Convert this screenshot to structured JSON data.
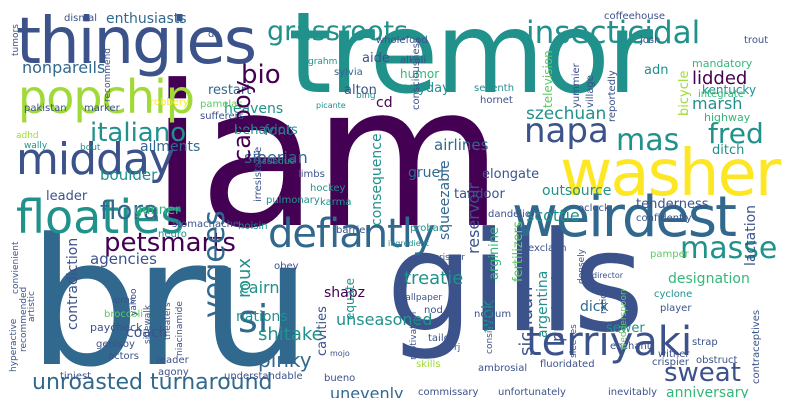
{
  "image_title": "",
  "palette": {
    "dark_purple": "#440154",
    "indigo": "#3b528b",
    "teal_blue": "#31688e",
    "teal": "#21918c",
    "green": "#35b779",
    "light_green": "#5ec962",
    "lime": "#a0da39",
    "yellow": "#fde725"
  },
  "words": {
    "iam": "iam",
    "bru": "bru",
    "gills": "gills",
    "tremor": "tremor",
    "thingies": "thingies",
    "washer": "washer",
    "weirdest": "weirdest",
    "popchip": "popchip",
    "midday": "midday",
    "defiantly": "defiantly",
    "insecticidal": "insecticidal",
    "grassroots": "grassroots",
    "napa": "napa",
    "mas": "mas",
    "terriyaki": "terriyaki",
    "sweat": "sweat",
    "masse": "masse",
    "floaties": "floaties",
    "petsmarts": "petsmarts",
    "italiano": "italiano",
    "fred": "fred",
    "si": "si",
    "turnaround": "turnaround",
    "flora": "flora",
    "vegees": "vegees",
    "carboy": "carboy",
    "bio": "bio",
    "enthusiasts": "enthusiasts",
    "nonpareils": "nonpareils",
    "behaviors": "behaviors",
    "unroasted": "unroasted",
    "pinky": "pinky",
    "shitake": "shitake",
    "anniversary": "anniversary",
    "unevenly": "unevenly",
    "treatie": "treatie",
    "designation": "designation",
    "sichuan": "sichuan",
    "argentina": "argentina",
    "predominate": "predominate",
    "wok": "wok",
    "reservoir": "reservoir",
    "squeezable": "squeezable",
    "szechuan": "szechuan",
    "marsh": "marsh",
    "lidded": "lidded",
    "airlines": "airlines",
    "adn": "adn",
    "elongate": "elongate",
    "tandoor": "tandoor",
    "tenderness": "tenderness",
    "outsource": "outsource",
    "gruel": "gruel",
    "dick": "dick",
    "cairn": "cairn",
    "coach": "coach",
    "agencies": "agencies",
    "nations": "nations",
    "roux": "roux",
    "cavities": "cavities",
    "unseasoned": "unseasoned",
    "scottie": "scottie",
    "shapz": "shapz",
    "sewer": "sewer",
    "heavens": "heavens",
    "font": "font",
    "restart": "restart",
    "boulder": "boulder",
    "ailments": "ailments",
    "siberian": "siberian",
    "gunner": "gunner",
    "leader": "leader",
    "contradiction": "contradiction",
    "consequence": "consequence",
    "equate": "equate",
    "arginine": "arginine",
    "fertilizers": "fertilizers",
    "lactation": "lactation",
    "kentucky": "kentucky",
    "highway": "highway",
    "ditch": "ditch",
    "bicycle": "bicycle",
    "humor": "humor",
    "anyday": "anyday",
    "alton": "alton",
    "aide": "aide",
    "cd": "cd",
    "coffeehouse": "coffeehouse",
    "mandatory": "mandatory",
    "integrate": "integrate",
    "seventh": "seventh",
    "hornet": "hornet",
    "television": "television",
    "dismal": "dismal",
    "tumors": "tumors",
    "recommend": "recommend",
    "robbery": "robbery",
    "pakistan": "pakistan",
    "marker": "marker",
    "pamelas": "pamelas",
    "sufferers": "sufferers",
    "sylvia": "sylvia",
    "alkali": "alkali",
    "wholefood": "wholefood",
    "consciousness": "consciousness",
    "josh": "josh",
    "trout": "trout",
    "yummier": "yummier",
    "village": "village",
    "reportedly": "reportedly",
    "bing": "bing",
    "grahm": "grahm",
    "irresistable": "irresistable",
    "subdue": "subdue",
    "limbs": "limbs",
    "hockey": "hockey",
    "karma": "karma",
    "pulmonary": "pulmonary",
    "stomachache": "stomachache",
    "hoisin": "hoisin",
    "neuro": "neuro",
    "barrier": "barrier",
    "probar": "probar",
    "dandelion": "dandelion",
    "oclock": "oclock",
    "confidently": "confidently",
    "exclaim": "exclaim",
    "pamper": "pamper",
    "densely": "densely",
    "cyclone": "cyclone",
    "player": "player",
    "ratios": "ratios",
    "wedderspoon": "wedderspoon",
    "enchant": "enchant",
    "strap": "strap",
    "crispier": "crispier",
    "contraceptives": "contraceptives",
    "obstruct": "obstruct",
    "wither": "wither",
    "inevitably": "inevitably",
    "fluoridated": "fluoridated",
    "ambrosial": "ambrosial",
    "commissary": "commissary",
    "unfortunately": "unfortunately",
    "skills": "skills",
    "bueno": "bueno",
    "understandable": "understandable",
    "agony": "agony",
    "tiniest": "tiniest",
    "reader": "reader",
    "actors": "actors",
    "genisoy": "genisoy",
    "paycheck": "paycheck",
    "broccoli": "broccoli",
    "ems": "ems",
    "yahoo": "yahoo",
    "sidewalk": "sidewalk",
    "theaters": "theaters",
    "niacinamide": "niacinamide",
    "obey": "obey",
    "nexium": "nexium",
    "nod": "nod",
    "motivation": "motivation",
    "tailor": "tailor",
    "rj": "rj",
    "considerations": "considerations",
    "sleeves": "sleeves",
    "hyperactive": "hyperactive",
    "recommended": "recommended",
    "artistic": "artistic",
    "convienient": "convienient",
    "adhd": "adhd",
    "wally": "wally",
    "bout": "bout",
    "ds": "ds",
    "ingredient": "ingredient",
    "crisper": "crisper",
    "wallpaper": "wallpaper",
    "va": "va",
    "picante": "picante",
    "director": "director",
    "mojo": "mojo"
  }
}
